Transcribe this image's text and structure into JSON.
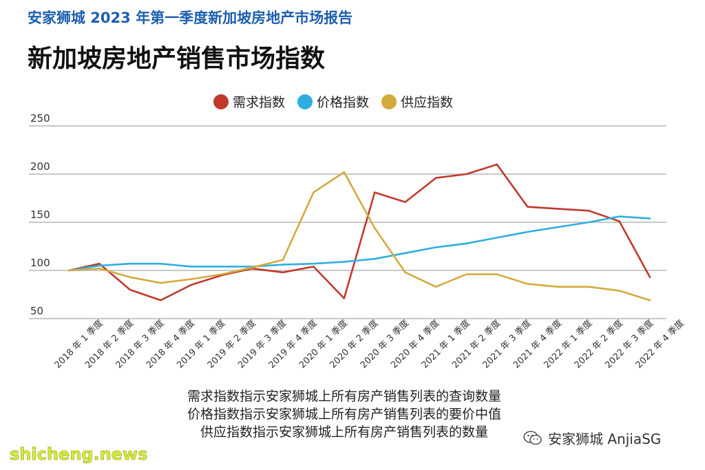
{
  "header": {
    "title": "安家狮城 2023 年第一季度新加坡房地产市场报告"
  },
  "chart_data": {
    "type": "line",
    "title": "新加坡房地产销售市场指数",
    "xlabel": "",
    "ylabel": "",
    "ylim": [
      50,
      250
    ],
    "yticks": [
      50,
      100,
      150,
      200,
      250
    ],
    "grid": true,
    "legend_position": "top-center",
    "categories": [
      "2018 年 1 季度",
      "2018 年 2 季度",
      "2018 年 3 季度",
      "2018 年 4 季度",
      "2019 年 1 季度",
      "2019 年 2 季度",
      "2019 年 3 季度",
      "2019 年 4 季度",
      "2020 年 1 季度",
      "2020 年 2 季度",
      "2020 年 3 季度",
      "2020 年 4 季度",
      "2021 年 1 季度",
      "2021 年 2 季度",
      "2021 年 3 季度",
      "2021 年 4 季度",
      "2022 年 1 季度",
      "2022 年 2 季度",
      "2022 年 3 季度",
      "2022 年 4 季度"
    ],
    "series": [
      {
        "name": "需求指数",
        "color": "#c0392b",
        "values": [
          100,
          107,
          80,
          69,
          85,
          95,
          102,
          98,
          104,
          71,
          181,
          171,
          196,
          200,
          210,
          166,
          164,
          162,
          151,
          93
        ]
      },
      {
        "name": "价格指数",
        "color": "#2eaee0",
        "values": [
          100,
          105,
          107,
          107,
          104,
          104,
          104,
          106,
          107,
          109,
          112,
          118,
          124,
          128,
          134,
          140,
          145,
          150,
          156,
          154
        ]
      },
      {
        "name": "供应指数",
        "color": "#d4a93c",
        "values": [
          100,
          102,
          93,
          87,
          91,
          96,
          103,
          111,
          181,
          202,
          144,
          98,
          83,
          96,
          96,
          86,
          83,
          83,
          79,
          69
        ]
      }
    ]
  },
  "notes": [
    "需求指数指示安家狮城上所有房产销售列表的查询数量",
    "价格指数指示安家狮城上所有房产销售列表的要价中值",
    "供应指数指示安家狮城上所有房产销售列表的数量"
  ],
  "brand": {
    "label": "安家狮城 AnjiaSG",
    "icon": "wechat-icon"
  },
  "watermark": "shicheng.news"
}
